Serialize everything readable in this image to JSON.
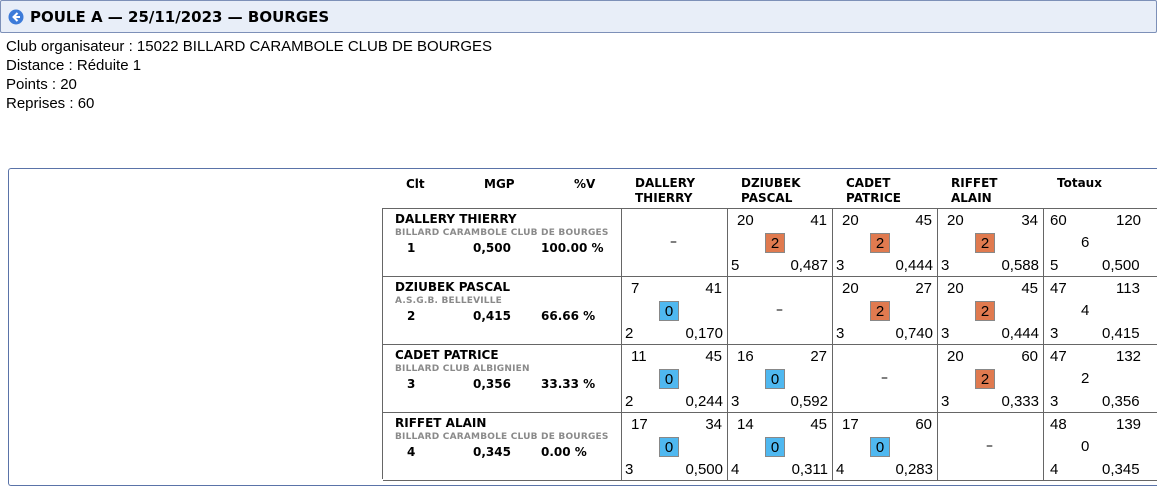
{
  "header": {
    "title": "POULE A — 25/11/2023 — BOURGES"
  },
  "meta": {
    "club": "Club organisateur : 15022 BILLARD CARAMBOLE CLUB DE BOURGES",
    "distance": "Distance : Réduite 1",
    "points": "Points : 20",
    "reprises": "Reprises : 60"
  },
  "columns": {
    "clt": "Clt",
    "mgp": "MGP",
    "pctv": "%V",
    "p1": [
      "DALLERY",
      "THIERRY"
    ],
    "p2": [
      "DZIUBEK",
      "PASCAL"
    ],
    "p3": [
      "CADET",
      "PATRICE"
    ],
    "p4": [
      "RIFFET",
      "ALAIN"
    ],
    "totaux": "Totaux"
  },
  "colors": {
    "win": "#e07a4f",
    "loss": "#4fb8f0"
  },
  "players": [
    {
      "name": "DALLERY THIERRY",
      "club": "BILLARD CARAMBOLE CLUB DE BOURGES",
      "clt": "1",
      "mgp": "0,500",
      "pctv": "100.00 %",
      "results": [
        null,
        {
          "pts": "20",
          "car": "41",
          "match": "2",
          "ser": "5",
          "moy": "0,487",
          "win": true
        },
        {
          "pts": "20",
          "car": "45",
          "match": "2",
          "ser": "3",
          "moy": "0,444",
          "win": true
        },
        {
          "pts": "20",
          "car": "34",
          "match": "2",
          "ser": "3",
          "moy": "0,588",
          "win": true
        }
      ],
      "total": {
        "pts": "60",
        "car": "120",
        "match": "6",
        "ser": "5",
        "moy": "0,500"
      }
    },
    {
      "name": "DZIUBEK PASCAL",
      "club": "A.S.G.B. BELLEVILLE",
      "clt": "2",
      "mgp": "0,415",
      "pctv": "66.66 %",
      "results": [
        {
          "pts": "7",
          "car": "41",
          "match": "0",
          "ser": "2",
          "moy": "0,170",
          "win": false
        },
        null,
        {
          "pts": "20",
          "car": "27",
          "match": "2",
          "ser": "3",
          "moy": "0,740",
          "win": true
        },
        {
          "pts": "20",
          "car": "45",
          "match": "2",
          "ser": "3",
          "moy": "0,444",
          "win": true
        }
      ],
      "total": {
        "pts": "47",
        "car": "113",
        "match": "4",
        "ser": "3",
        "moy": "0,415"
      }
    },
    {
      "name": "CADET PATRICE",
      "club": "BILLARD CLUB ALBIGNIEN",
      "clt": "3",
      "mgp": "0,356",
      "pctv": "33.33 %",
      "results": [
        {
          "pts": "11",
          "car": "45",
          "match": "0",
          "ser": "2",
          "moy": "0,244",
          "win": false
        },
        {
          "pts": "16",
          "car": "27",
          "match": "0",
          "ser": "3",
          "moy": "0,592",
          "win": false
        },
        null,
        {
          "pts": "20",
          "car": "60",
          "match": "2",
          "ser": "3",
          "moy": "0,333",
          "win": true
        }
      ],
      "total": {
        "pts": "47",
        "car": "132",
        "match": "2",
        "ser": "3",
        "moy": "0,356"
      }
    },
    {
      "name": "RIFFET ALAIN",
      "club": "BILLARD CARAMBOLE CLUB DE BOURGES",
      "clt": "4",
      "mgp": "0,345",
      "pctv": "0.00 %",
      "results": [
        {
          "pts": "17",
          "car": "34",
          "match": "0",
          "ser": "3",
          "moy": "0,500",
          "win": false
        },
        {
          "pts": "14",
          "car": "45",
          "match": "0",
          "ser": "4",
          "moy": "0,311",
          "win": false
        },
        {
          "pts": "17",
          "car": "60",
          "match": "0",
          "ser": "4",
          "moy": "0,283",
          "win": false
        },
        null
      ],
      "total": {
        "pts": "48",
        "car": "139",
        "match": "0",
        "ser": "4",
        "moy": "0,345"
      }
    }
  ],
  "empty_cell": "–"
}
